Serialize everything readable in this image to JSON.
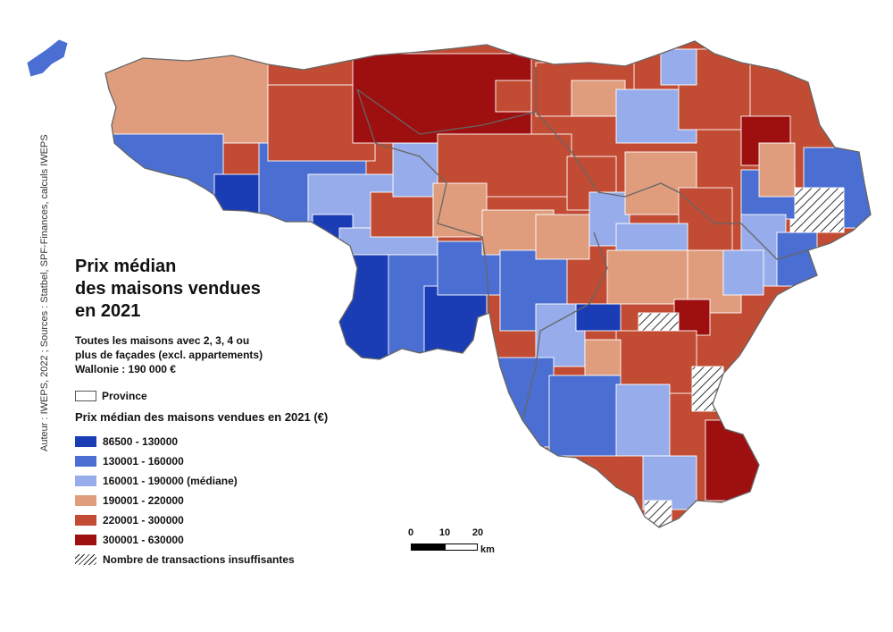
{
  "title": {
    "line1": "Prix médian",
    "line2": "des maisons vendues",
    "line3": "en 2021"
  },
  "subtitle": {
    "line1": "Toutes les maisons avec 2, 3, 4 ou",
    "line2": "plus de façades (excl. appartements)",
    "line3": "Wallonie : 190 000 €"
  },
  "credit": "Auteur : IWEPS, 2022 ; Sources : Statbel, SPF-Finances, calculs IWEPS",
  "province_label": "Province",
  "legend": {
    "title": "Prix médian des maisons vendues en 2021 (€)",
    "classes": [
      {
        "label": "86500 - 130000",
        "color": "#1a3db5"
      },
      {
        "label": "130001 - 160000",
        "color": "#4a6ed2"
      },
      {
        "label": "160001 - 190000 (médiane)",
        "color": "#97acea"
      },
      {
        "label": "190001 - 220000",
        "color": "#df9d7e"
      },
      {
        "label": "220001 - 300000",
        "color": "#c24b33"
      },
      {
        "label": "300001 - 630000",
        "color": "#9e0f10"
      }
    ],
    "insufficient_label": "Nombre de transactions insuffisantes"
  },
  "scale": {
    "ticks": [
      "0",
      "10",
      "20"
    ],
    "unit": "km"
  }
}
